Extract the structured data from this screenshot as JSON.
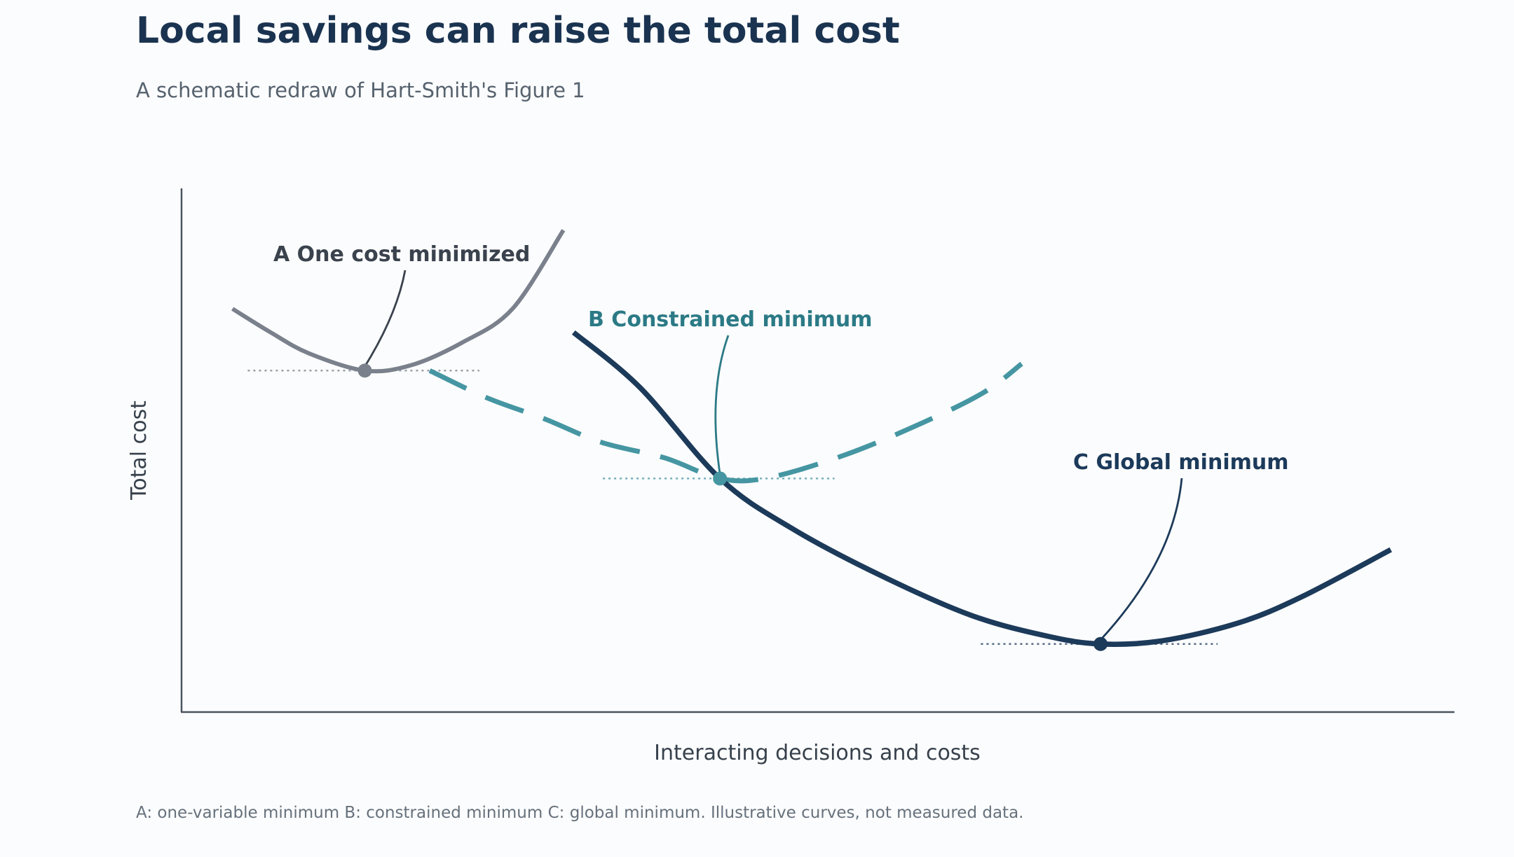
{
  "title": "Local savings can raise the total cost",
  "subtitle": "A schematic redraw of Hart-Smith's Figure 1",
  "footnote": "A: one-variable minimum   B: constrained minimum   C: global minimum. Illustrative curves, not measured data.",
  "colors": {
    "background": "#fbfcfd",
    "title": "#1a3350",
    "curve_a": "#7a818c",
    "curve_b": "#4596a2",
    "curve_c": "#1c3a5a",
    "label_a": "#3a424d",
    "label_b": "#2b7a86",
    "label_c": "#1c3a5a",
    "axis": "#4a5560"
  },
  "chart_data": {
    "type": "line",
    "xlabel": "Interacting decisions and costs",
    "ylabel": "Total cost",
    "xlim": [
      0,
      100
    ],
    "ylim": [
      0,
      100
    ],
    "grid": false,
    "legend": "none",
    "series": [
      {
        "key": "a",
        "style": "solid",
        "points": [
          [
            4,
            77
          ],
          [
            7,
            72.5
          ],
          [
            10,
            68.5
          ],
          [
            14.4,
            65.2
          ],
          [
            18,
            66.2
          ],
          [
            22,
            70.5
          ],
          [
            26,
            77
          ],
          [
            30,
            92
          ]
        ]
      },
      {
        "key": "b",
        "style": "dashed",
        "points": [
          [
            19.5,
            65.2
          ],
          [
            24,
            60
          ],
          [
            28.5,
            56
          ],
          [
            33,
            51.5
          ],
          [
            38,
            48.5
          ],
          [
            42.3,
            44.6
          ],
          [
            46,
            44.7
          ],
          [
            52,
            49
          ],
          [
            58,
            55
          ],
          [
            63,
            61
          ],
          [
            66,
            66.5
          ]
        ]
      },
      {
        "key": "c",
        "style": "solid",
        "points": [
          [
            30.8,
            72.5
          ],
          [
            36,
            62
          ],
          [
            42.3,
            44.6
          ],
          [
            48,
            35
          ],
          [
            55,
            26
          ],
          [
            62,
            18.5
          ],
          [
            68,
            14.5
          ],
          [
            72.2,
            13
          ],
          [
            77,
            13.6
          ],
          [
            83,
            17
          ],
          [
            88,
            22
          ],
          [
            95,
            31
          ]
        ]
      }
    ],
    "minima": [
      {
        "key": "a",
        "x": 14.4,
        "y": 65.2,
        "guide": [
          5.2,
          23.4
        ]
      },
      {
        "key": "b",
        "x": 42.3,
        "y": 44.6,
        "guide": [
          33.1,
          51.3
        ]
      },
      {
        "key": "c",
        "x": 72.2,
        "y": 13,
        "guide": [
          62.8,
          81.4
        ]
      }
    ],
    "annotations": [
      {
        "key": "a",
        "text": "A  One cost minimized",
        "point": [
          14.4,
          65.2
        ]
      },
      {
        "key": "b",
        "text": "B  Constrained minimum",
        "point": [
          42.3,
          44.6
        ]
      },
      {
        "key": "c",
        "text": "C  Global minimum",
        "point": [
          72.2,
          13
        ]
      }
    ]
  }
}
